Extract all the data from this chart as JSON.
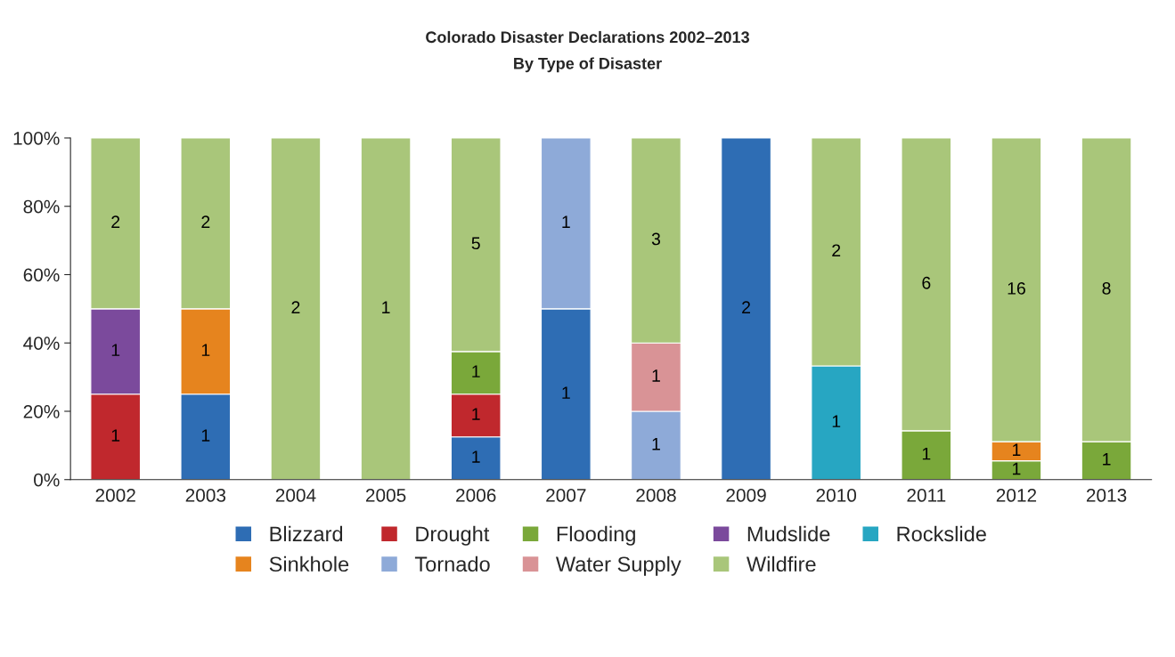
{
  "chart_data": {
    "type": "bar",
    "title": "Colorado Disaster Declarations 2002–2013",
    "subtitle": "By Type of Disaster",
    "categories": [
      "2002",
      "2003",
      "2004",
      "2005",
      "2006",
      "2007",
      "2008",
      "2009",
      "2010",
      "2011",
      "2012",
      "2013"
    ],
    "stacked": true,
    "ylim": [
      0,
      100
    ],
    "yticks": [
      {
        "value": 0,
        "label": "0%"
      },
      {
        "value": 20,
        "label": "20%"
      },
      {
        "value": 40,
        "label": "40%"
      },
      {
        "value": 60,
        "label": "60%"
      },
      {
        "value": 80,
        "label": "80%"
      },
      {
        "value": 100,
        "label": "100%"
      }
    ],
    "grid": false,
    "legend": "bottom",
    "series": [
      {
        "name": "Blizzard",
        "color": "#2e6db4",
        "values": [
          null,
          25,
          null,
          null,
          12.5,
          50,
          null,
          100,
          null,
          null,
          null,
          null
        ]
      },
      {
        "name": "Drought",
        "color": "#c0282d",
        "values": [
          25,
          null,
          null,
          null,
          12.5,
          null,
          null,
          null,
          null,
          null,
          null,
          null
        ]
      },
      {
        "name": "Flooding",
        "color": "#7aa83a",
        "values": [
          null,
          null,
          null,
          null,
          12.5,
          null,
          null,
          null,
          null,
          14.3,
          5.5,
          11.1
        ]
      },
      {
        "name": "Mudslide",
        "color": "#7b4a9c",
        "values": [
          25,
          null,
          null,
          null,
          null,
          null,
          null,
          null,
          null,
          null,
          null,
          null
        ]
      },
      {
        "name": "Rockslide",
        "color": "#27a6c2",
        "values": [
          null,
          null,
          null,
          null,
          null,
          null,
          null,
          null,
          33.3,
          null,
          null,
          null
        ]
      },
      {
        "name": "Sinkhole",
        "color": "#e6841e",
        "values": [
          null,
          25,
          null,
          null,
          null,
          null,
          null,
          null,
          null,
          null,
          5.6,
          null
        ]
      },
      {
        "name": "Tornado",
        "color": "#8eaad8",
        "values": [
          null,
          null,
          null,
          null,
          null,
          50,
          20,
          null,
          null,
          null,
          null,
          null
        ]
      },
      {
        "name": "Water Supply",
        "color": "#d99396",
        "values": [
          null,
          null,
          null,
          null,
          null,
          null,
          20,
          null,
          null,
          null,
          null,
          null
        ]
      },
      {
        "name": "Wildfire",
        "color": "#a9c67a",
        "values": [
          50,
          50,
          100,
          100,
          62.5,
          null,
          60,
          null,
          66.7,
          85.7,
          88.9,
          88.9
        ]
      }
    ],
    "annotations": [
      "1",
      "1",
      "2",
      "1",
      "1",
      "2",
      "2",
      "1",
      "1",
      "1",
      "1",
      "5",
      "1",
      "1",
      "1",
      "1",
      "3",
      "2",
      "1",
      "2",
      "1",
      "6",
      "1",
      "1",
      "16",
      "1",
      "8"
    ]
  }
}
